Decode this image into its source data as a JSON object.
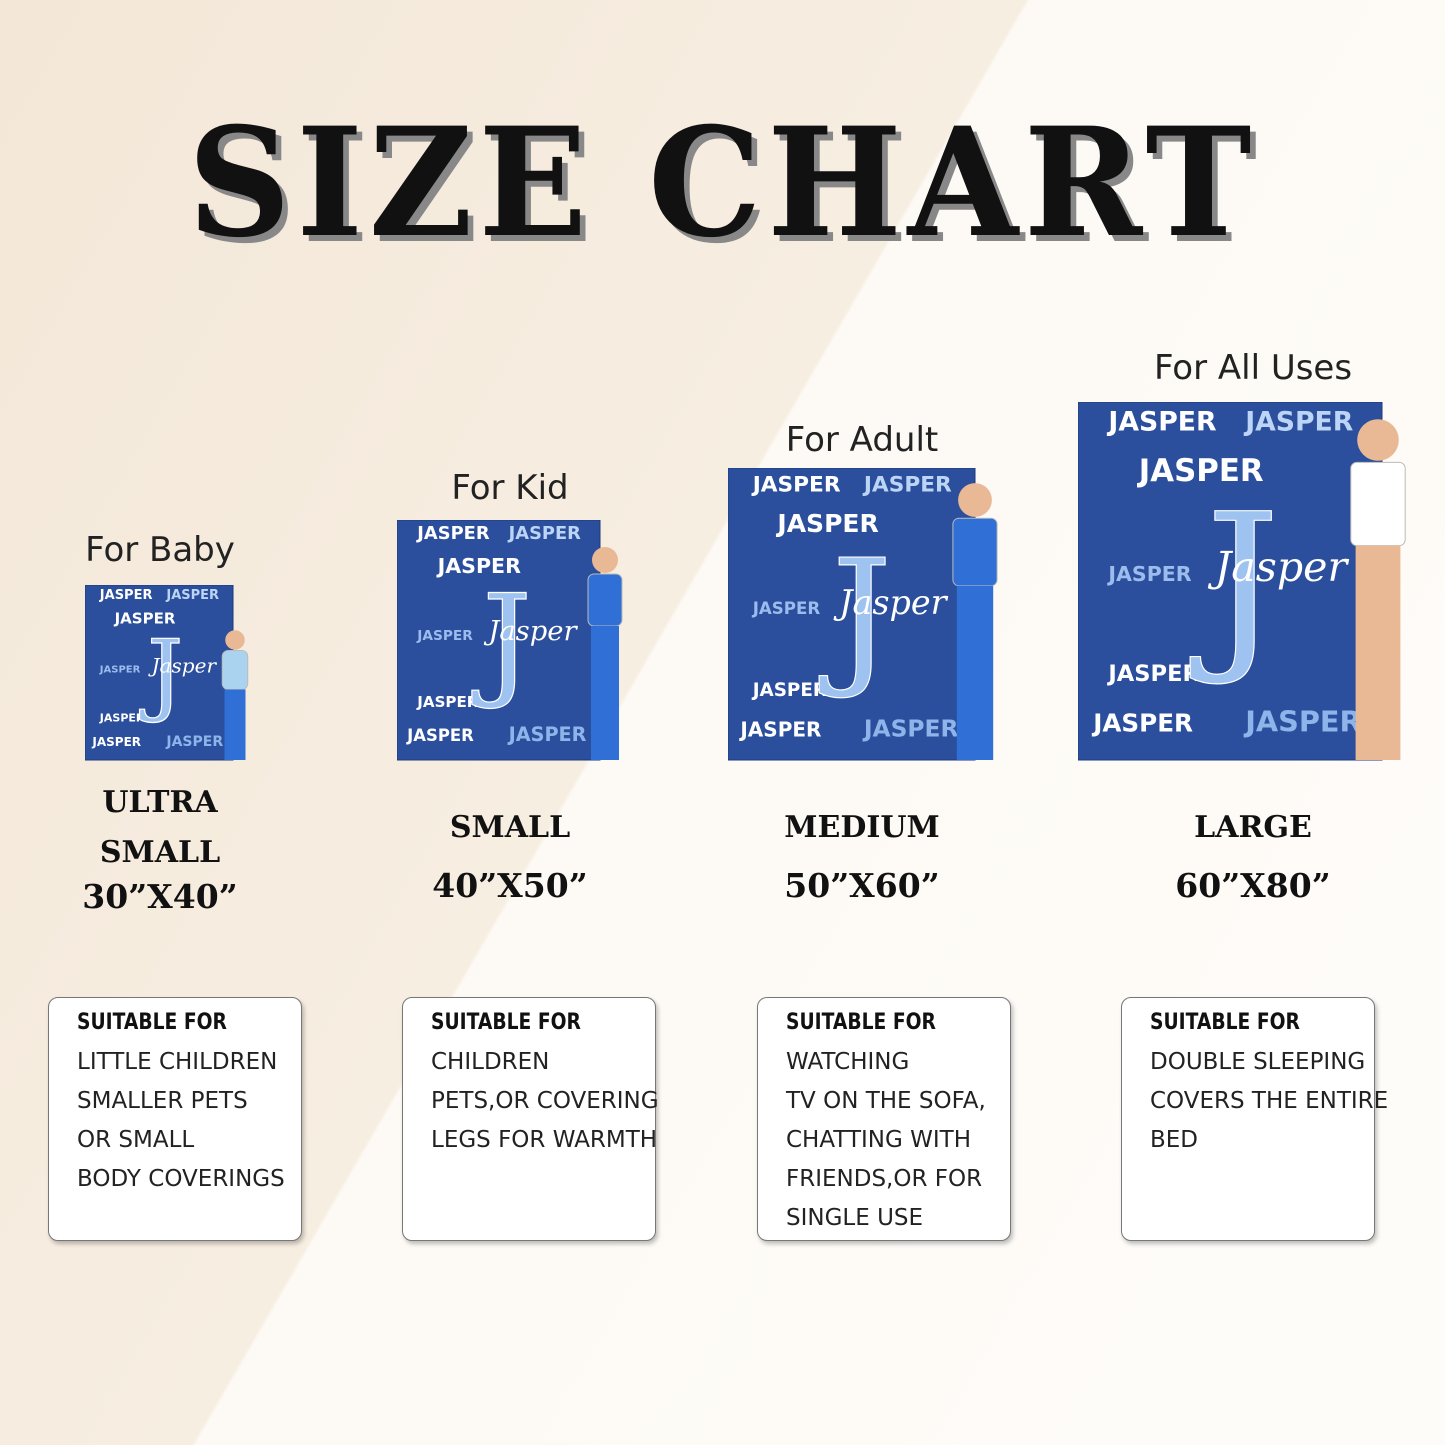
{
  "header": {
    "title": "SIZE CHART"
  },
  "blanket": {
    "name": "JASPER",
    "script_name": "Jasper",
    "monogram": "J"
  },
  "sizes": [
    {
      "use": "For Baby",
      "size_lines": [
        "ULTRA",
        "SMALL"
      ],
      "dimensions": "30”X40”",
      "suitable_heading": "SUITABLE  FOR",
      "suitable_lines": [
        "LITTLE CHILDREN",
        "SMALLER PETS",
        "OR SMALL",
        "BODY COVERINGS"
      ]
    },
    {
      "use": "For Kid",
      "size_lines": [
        "SMALL"
      ],
      "dimensions": "40”X50”",
      "suitable_heading": "SUITABLE FOR",
      "suitable_lines": [
        "CHILDREN",
        "PETS,OR COVERING",
        "LEGS FOR WARMTH"
      ]
    },
    {
      "use": "For Adult",
      "size_lines": [
        "MEDIUM"
      ],
      "dimensions": "50”X60”",
      "suitable_heading": "SUITABLE FOR",
      "suitable_lines": [
        "WATCHING",
        "TV ON THE SOFA,",
        "CHATTING WITH",
        "FRIENDS,OR FOR",
        "SINGLE USE"
      ]
    },
    {
      "use": "For All Uses",
      "size_lines": [
        "LARGE"
      ],
      "dimensions": "60”X80”",
      "suitable_heading": "SUITABLE FOR",
      "suitable_lines": [
        "DOUBLE SLEEPING",
        "COVERS THE ENTIRE",
        "BED"
      ]
    }
  ]
}
